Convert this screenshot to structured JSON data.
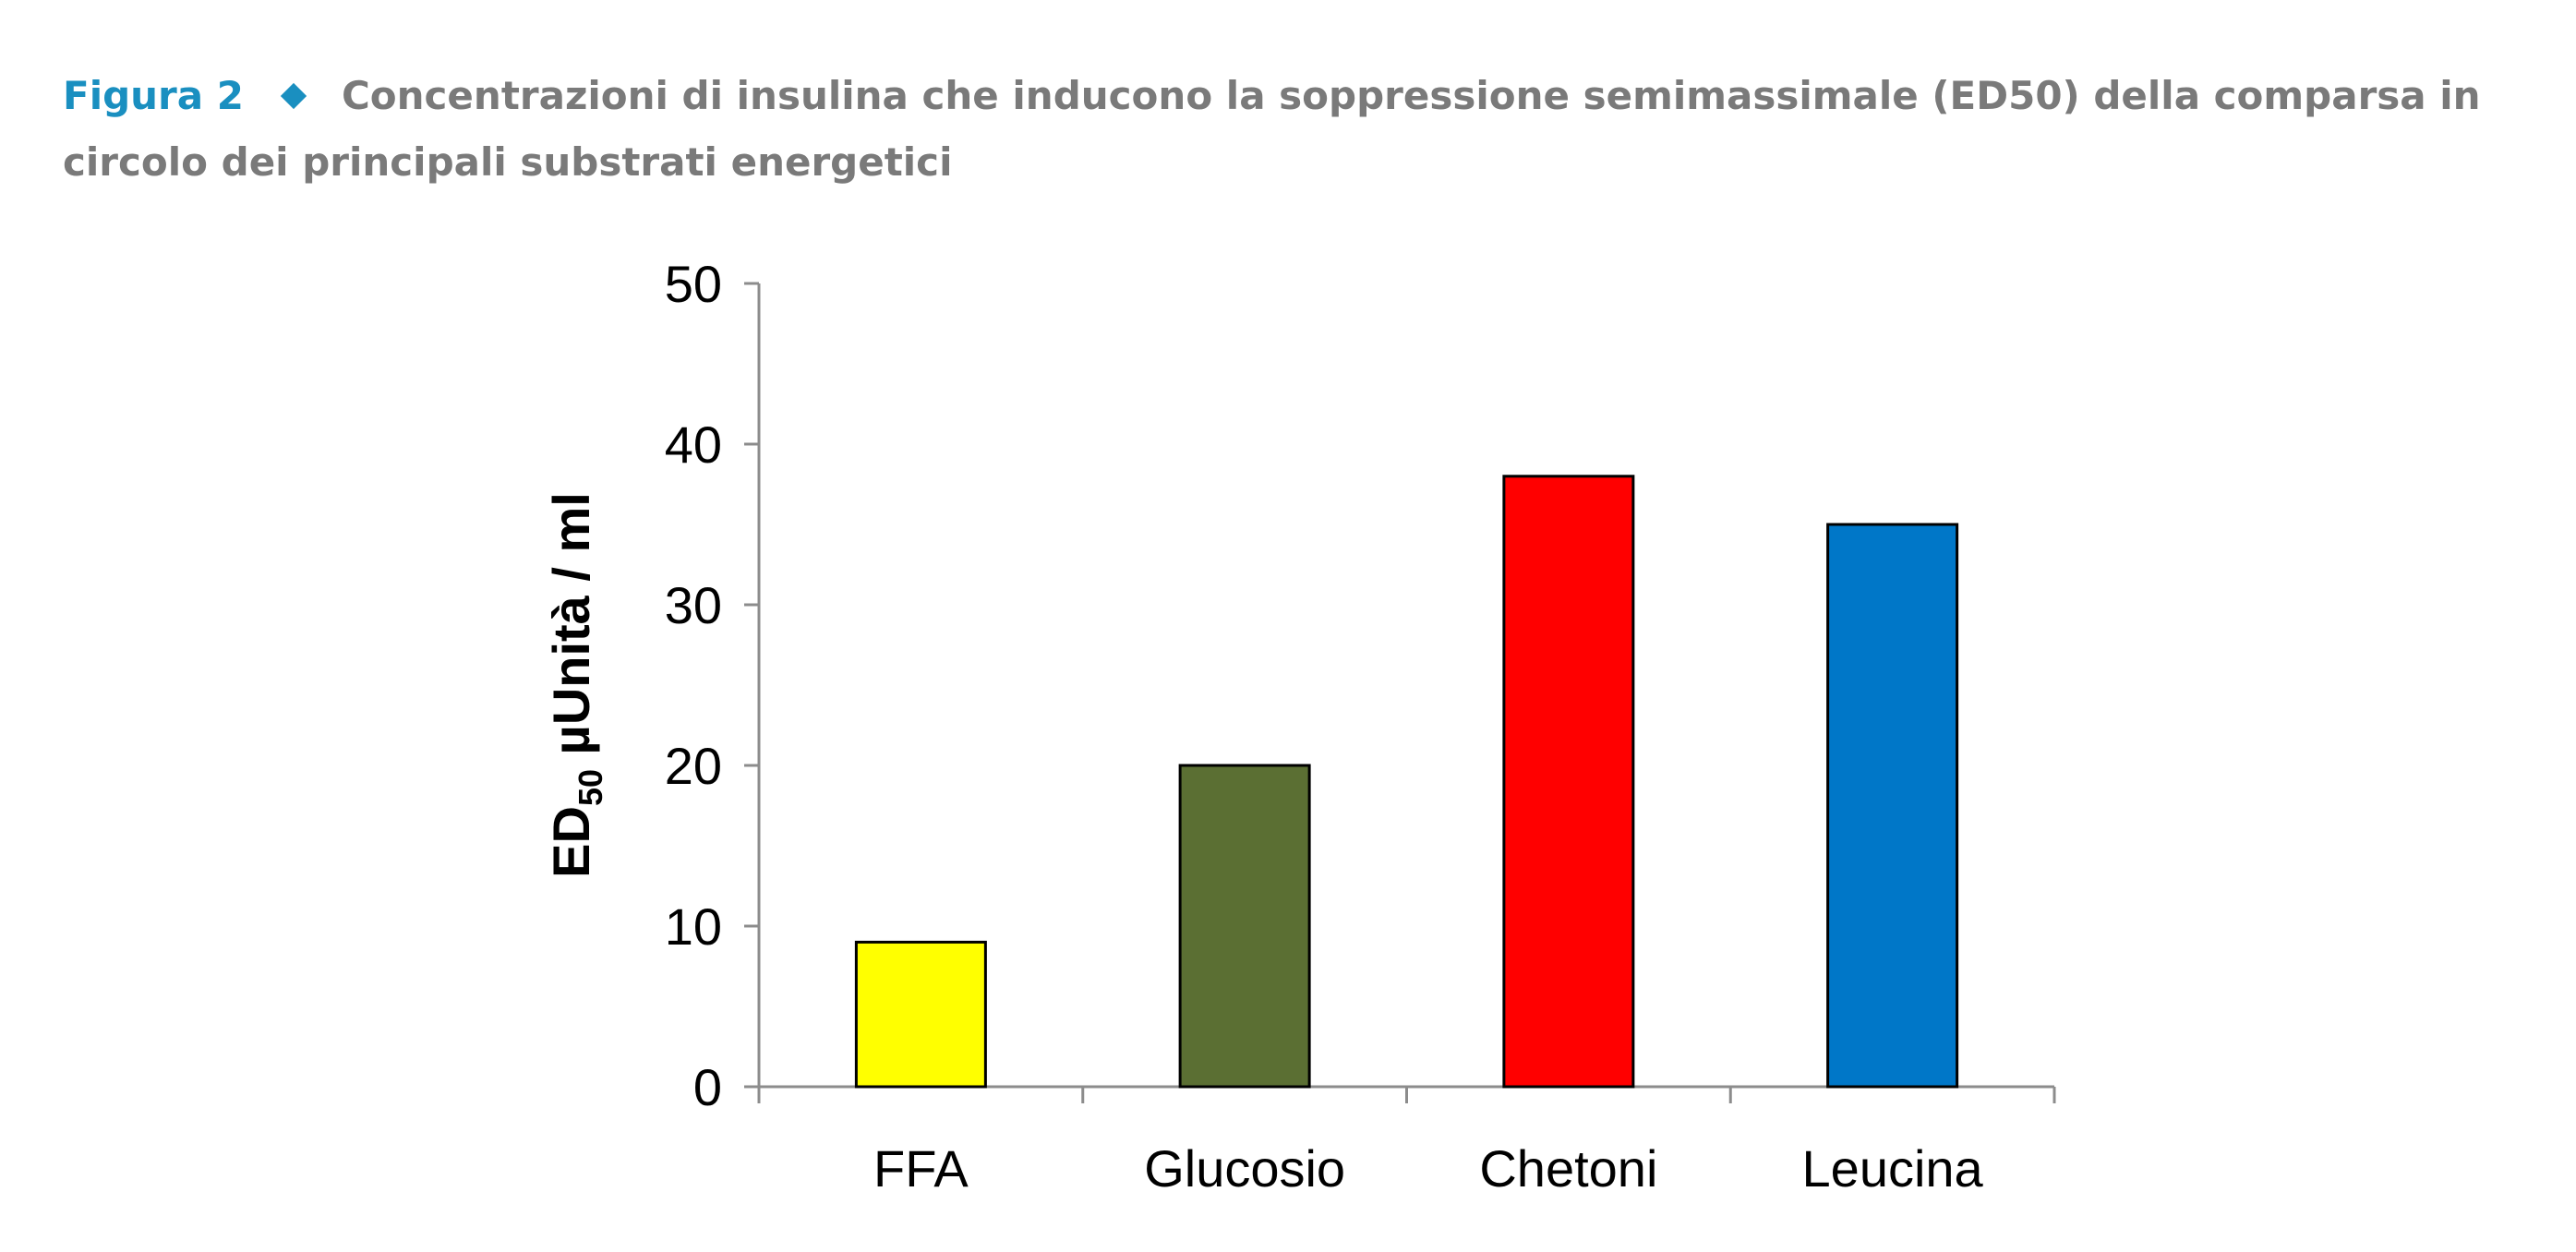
{
  "caption": {
    "label": "Figura 2",
    "text": "Concentrazioni di insulina che inducono la soppressione semimassimale (ED50) della comparsa in circolo dei principali substrati energetici"
  },
  "chart_data": {
    "type": "bar",
    "categories": [
      "FFA",
      "Glucosio",
      "Chetoni",
      "Leucina"
    ],
    "values": [
      9,
      20,
      38,
      35
    ],
    "colors": [
      "#ffff00",
      "#5b6f33",
      "#ff0000",
      "#0077c8"
    ],
    "ylabel": {
      "main": "ED",
      "sub": "50",
      "rest": " µUnità / ml"
    },
    "ylim": [
      0,
      50
    ],
    "yticks": [
      "0",
      "10",
      "20",
      "30",
      "40",
      "50"
    ],
    "grid": false,
    "legend": "none"
  }
}
